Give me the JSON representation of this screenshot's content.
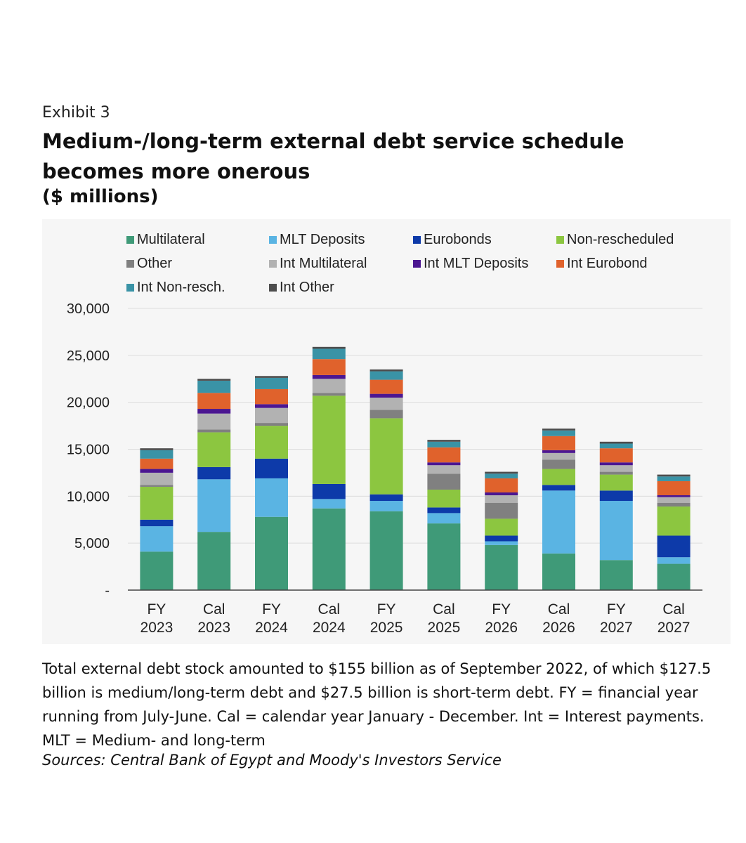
{
  "exhibit_label": "Exhibit 3",
  "title": "Medium-/long-term external debt service schedule becomes more onerous",
  "units": "($ millions)",
  "note_lines": [
    "Total external debt stock amounted to $155 billion as of September 2022, of which $127.5",
    "billion is medium/long-term debt and $27.5 billion is short-term debt. FY = financial year",
    "running from July-June. Cal = calendar year January - December. Int = Interest payments.",
    "MLT = Medium- and long-term"
  ],
  "source": "Sources: Central Bank of Egypt and Moody's Investors Service",
  "chart_data": {
    "type": "bar",
    "stacked": true,
    "title": "Medium-/long-term external debt service schedule becomes more onerous",
    "ylabel": "$ millions",
    "ylim": [
      0,
      30000
    ],
    "yticks": [
      0,
      5000,
      10000,
      15000,
      20000,
      25000,
      30000
    ],
    "ytick_labels": [
      "-",
      "5,000",
      "10,000",
      "15,000",
      "20,000",
      "25,000",
      "30,000"
    ],
    "grid": true,
    "legend_position": "top",
    "categories": [
      [
        "FY",
        "2023"
      ],
      [
        "Cal",
        "2023"
      ],
      [
        "FY",
        "2024"
      ],
      [
        "Cal",
        "2024"
      ],
      [
        "FY",
        "2025"
      ],
      [
        "Cal",
        "2025"
      ],
      [
        "FY",
        "2026"
      ],
      [
        "Cal",
        "2026"
      ],
      [
        "FY",
        "2027"
      ],
      [
        "Cal",
        "2027"
      ]
    ],
    "series": [
      {
        "name": "Multilateral",
        "color": "#3f9a78",
        "values": [
          4100,
          6200,
          7800,
          8700,
          8400,
          7100,
          4800,
          3900,
          3200,
          2800
        ]
      },
      {
        "name": "MLT Deposits",
        "color": "#5ab4e3",
        "values": [
          2700,
          5600,
          4100,
          1000,
          1100,
          1100,
          400,
          6700,
          6300,
          700
        ]
      },
      {
        "name": "Eurobonds",
        "color": "#0d3aa9",
        "values": [
          700,
          1300,
          2100,
          1600,
          700,
          600,
          600,
          600,
          1100,
          2300
        ]
      },
      {
        "name": "Non-rescheduled",
        "color": "#8cc640",
        "values": [
          3500,
          3700,
          3500,
          9400,
          8100,
          1900,
          1800,
          1700,
          1700,
          3100
        ]
      },
      {
        "name": "Other",
        "color": "#808080",
        "values": [
          200,
          300,
          300,
          300,
          900,
          1700,
          1700,
          1000,
          300,
          400
        ]
      },
      {
        "name": "Int Multilateral",
        "color": "#b2b2b2",
        "values": [
          1300,
          1700,
          1600,
          1500,
          1300,
          900,
          800,
          700,
          700,
          600
        ]
      },
      {
        "name": "Int MLT Deposits",
        "color": "#4b1691",
        "values": [
          400,
          500,
          400,
          400,
          400,
          300,
          300,
          300,
          300,
          200
        ]
      },
      {
        "name": "Int Eurobond",
        "color": "#e0622c",
        "values": [
          1100,
          1700,
          1600,
          1700,
          1500,
          1600,
          1500,
          1500,
          1500,
          1500
        ]
      },
      {
        "name": "Int Non-resch.",
        "color": "#3a93a6",
        "values": [
          900,
          1300,
          1200,
          1100,
          900,
          600,
          500,
          600,
          500,
          500
        ]
      },
      {
        "name": "Int Other",
        "color": "#4d4d4d",
        "values": [
          200,
          200,
          200,
          200,
          200,
          200,
          200,
          200,
          200,
          200
        ]
      }
    ]
  }
}
